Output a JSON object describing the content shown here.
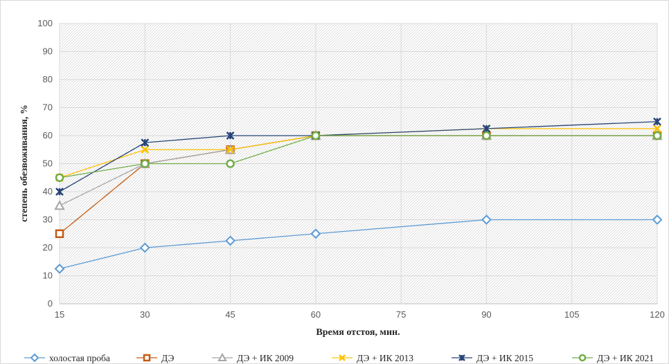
{
  "chart_data": {
    "type": "line",
    "title": "",
    "xlabel": "Время отстоя, мин.",
    "ylabel": "степень обезвоживания, %",
    "x": [
      15,
      30,
      45,
      60,
      90,
      120
    ],
    "xlim": [
      15,
      120
    ],
    "x_ticks": [
      "15",
      "30",
      "45",
      "60",
      "75",
      "90",
      "105",
      "120"
    ],
    "x_tick_values": [
      15,
      30,
      45,
      60,
      75,
      90,
      105,
      120
    ],
    "ylim": [
      0,
      100
    ],
    "y_ticks": [
      "0",
      "10",
      "20",
      "30",
      "40",
      "50",
      "60",
      "70",
      "80",
      "90",
      "100"
    ],
    "y_tick_values": [
      0,
      10,
      20,
      30,
      40,
      50,
      60,
      70,
      80,
      90,
      100
    ],
    "grid": true,
    "legend_position": "bottom",
    "series": [
      {
        "name": "холостая проба",
        "values": [
          12.5,
          20,
          22.5,
          25,
          30,
          30
        ],
        "color": "#5b9bd5",
        "marker": "diamond"
      },
      {
        "name": "ДЭ",
        "values": [
          25,
          50,
          55,
          60,
          60,
          60
        ],
        "color": "#c55a11",
        "marker": "square"
      },
      {
        "name": "ДЭ + ИК 2009",
        "values": [
          35,
          50,
          55,
          60,
          60,
          60
        ],
        "color": "#a5a5a5",
        "marker": "triangle"
      },
      {
        "name": "ДЭ + ИК 2013",
        "values": [
          45,
          55,
          55,
          60,
          62.5,
          62.5
        ],
        "color": "#ffc000",
        "marker": "x"
      },
      {
        "name": "ДЭ + ИК 2015",
        "values": [
          40,
          57.5,
          60,
          60,
          62.5,
          65
        ],
        "color": "#264478",
        "marker": "star"
      },
      {
        "name": "ДЭ + ИК 2021",
        "values": [
          45,
          50,
          50,
          60,
          60,
          60
        ],
        "color": "#70ad47",
        "marker": "circle"
      }
    ]
  }
}
